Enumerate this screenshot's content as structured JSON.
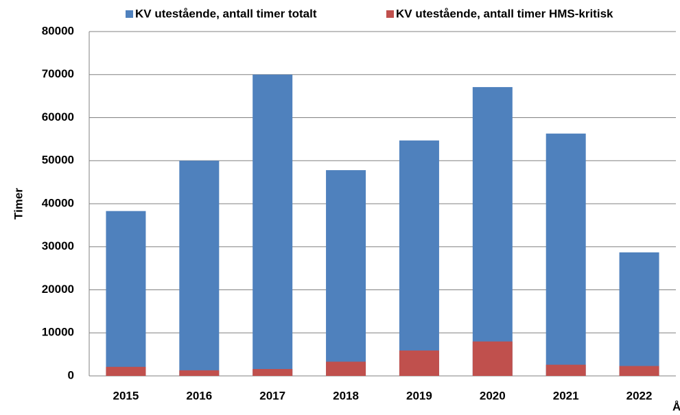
{
  "chart_data": {
    "type": "bar",
    "overlap": true,
    "xlabel": "Å",
    "ylabel": "Timer",
    "categories": [
      "2015",
      "2016",
      "2017",
      "2018",
      "2019",
      "2020",
      "2021",
      "2022"
    ],
    "series": [
      {
        "name": "KV utestående, antall timer totalt",
        "color": "#4f81bd",
        "values": [
          38300,
          50000,
          70000,
          47800,
          54700,
          67100,
          56300,
          28700
        ]
      },
      {
        "name": "KV utestående, antall timer HMS-kritisk",
        "color": "#c0504d",
        "values": [
          2100,
          1300,
          1600,
          3300,
          5900,
          8000,
          2600,
          2300
        ]
      }
    ],
    "ylim": [
      0,
      80000
    ],
    "yticks": [
      0,
      10000,
      20000,
      30000,
      40000,
      50000,
      60000,
      70000,
      80000
    ],
    "grid": true
  }
}
